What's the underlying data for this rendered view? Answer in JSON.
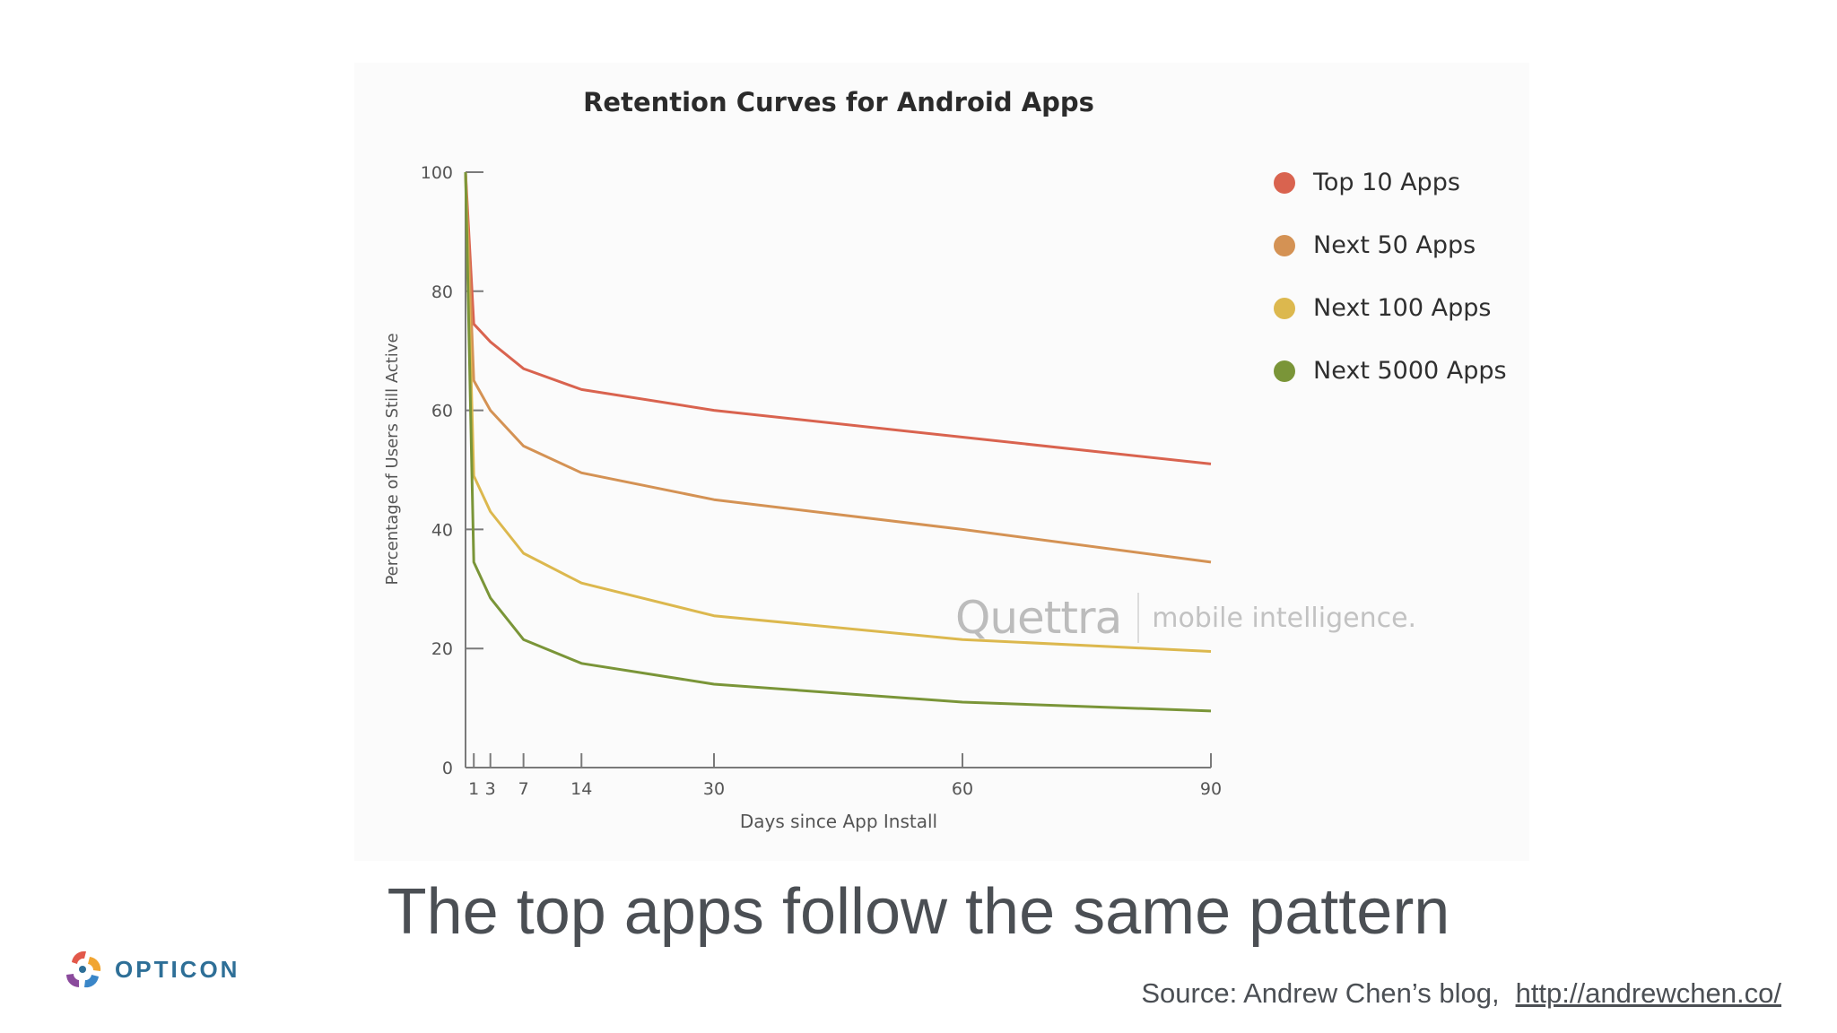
{
  "slide": {
    "headline": "The top apps follow the same pattern",
    "source_text": "Source: Andrew Chen’s blog,",
    "source_link": "http://andrewchen.co/",
    "brand": {
      "name": "OPTICON",
      "icon": "opticon-logo-icon"
    }
  },
  "watermark": {
    "logo": "Quettra",
    "tagline": "mobile intelligence."
  },
  "chart_data": {
    "type": "line",
    "title": "Retention Curves for Android Apps",
    "xlabel": "Days since App Install",
    "ylabel": "Percentage of Users Still Active",
    "x_ticks": [
      1,
      3,
      7,
      14,
      30,
      60,
      90
    ],
    "y_ticks": [
      0,
      20,
      40,
      60,
      80,
      100
    ],
    "xlim": [
      0,
      90
    ],
    "ylim": [
      0,
      100
    ],
    "grid": false,
    "legend_position": "right",
    "x": [
      0,
      1,
      3,
      7,
      14,
      30,
      60,
      90
    ],
    "series": [
      {
        "name": "Top 10 Apps",
        "color": "#d9634f",
        "values": [
          100,
          74.5,
          71.5,
          67,
          63.5,
          60,
          55.5,
          51
        ]
      },
      {
        "name": "Next 50 Apps",
        "color": "#d49254",
        "values": [
          100,
          65,
          60,
          54,
          49.5,
          45,
          40,
          34.5
        ]
      },
      {
        "name": "Next 100 Apps",
        "color": "#dcb84e",
        "values": [
          100,
          49,
          43,
          36,
          31,
          25.5,
          21.5,
          19.5
        ]
      },
      {
        "name": "Next 5000 Apps",
        "color": "#7a9538",
        "values": [
          100,
          34.5,
          28.5,
          21.5,
          17.5,
          14,
          11,
          9.5
        ]
      }
    ]
  }
}
